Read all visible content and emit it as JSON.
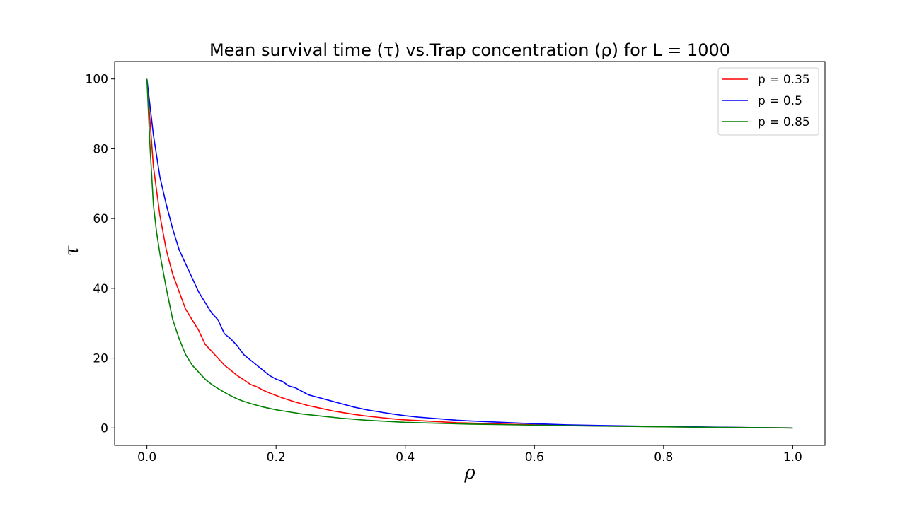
{
  "chart_data": {
    "type": "line",
    "title": "Mean survival time (τ) vs.Trap concentration (ρ) for L = 1000",
    "xlabel": "ρ",
    "ylabel": "τ",
    "xlim": [
      -0.05,
      1.05
    ],
    "ylim": [
      -5,
      105
    ],
    "x_ticks": [
      0.0,
      0.2,
      0.4,
      0.6,
      0.8,
      1.0
    ],
    "x_tick_labels": [
      "0.0",
      "0.2",
      "0.4",
      "0.6",
      "0.8",
      "1.0"
    ],
    "y_ticks": [
      0,
      20,
      40,
      60,
      80,
      100
    ],
    "y_tick_labels": [
      "0",
      "20",
      "40",
      "60",
      "80",
      "100"
    ],
    "grid": false,
    "legend_position": "top-right",
    "series": [
      {
        "name": "p = 0.35",
        "color": "#ff0000",
        "x": [
          0.0,
          0.01,
          0.02,
          0.03,
          0.04,
          0.05,
          0.06,
          0.07,
          0.08,
          0.09,
          0.1,
          0.11,
          0.12,
          0.13,
          0.14,
          0.15,
          0.16,
          0.17,
          0.18,
          0.19,
          0.2,
          0.21,
          0.22,
          0.23,
          0.24,
          0.25,
          0.26,
          0.27,
          0.28,
          0.29,
          0.3,
          0.32,
          0.34,
          0.36,
          0.38,
          0.4,
          0.42,
          0.44,
          0.46,
          0.48,
          0.5,
          0.55,
          0.6,
          0.65,
          0.7,
          0.75,
          0.8,
          0.85,
          0.9,
          0.95,
          1.0
        ],
        "y": [
          100,
          75,
          61,
          51,
          44,
          39,
          34,
          31,
          28,
          24,
          22,
          20,
          18,
          16.5,
          15,
          13.8,
          12.5,
          11.8,
          10.8,
          10,
          9.3,
          8.6,
          8,
          7.4,
          6.9,
          6.4,
          6,
          5.6,
          5.2,
          4.8,
          4.5,
          3.9,
          3.4,
          3.0,
          2.6,
          2.3,
          2.1,
          1.9,
          1.7,
          1.5,
          1.4,
          1.1,
          0.9,
          0.7,
          0.55,
          0.45,
          0.35,
          0.25,
          0.15,
          0.08,
          0.0
        ]
      },
      {
        "name": "p = 0.5",
        "color": "#0000ff",
        "x": [
          0.0,
          0.01,
          0.02,
          0.03,
          0.04,
          0.05,
          0.06,
          0.07,
          0.08,
          0.09,
          0.1,
          0.11,
          0.12,
          0.13,
          0.14,
          0.15,
          0.16,
          0.17,
          0.18,
          0.19,
          0.2,
          0.21,
          0.22,
          0.23,
          0.24,
          0.25,
          0.26,
          0.27,
          0.28,
          0.29,
          0.3,
          0.32,
          0.34,
          0.36,
          0.38,
          0.4,
          0.42,
          0.44,
          0.46,
          0.48,
          0.5,
          0.55,
          0.6,
          0.65,
          0.7,
          0.75,
          0.8,
          0.85,
          0.9,
          0.95,
          1.0
        ],
        "y": [
          100,
          84,
          72,
          64,
          57,
          51,
          47,
          43,
          39,
          36,
          33,
          31,
          27,
          25.5,
          23.5,
          21,
          19.5,
          18,
          16.5,
          15,
          14,
          13.3,
          12,
          11.5,
          10.5,
          9.5,
          9,
          8.5,
          8,
          7.5,
          7,
          6,
          5.2,
          4.6,
          4.0,
          3.5,
          3.1,
          2.8,
          2.5,
          2.2,
          2.0,
          1.6,
          1.2,
          0.9,
          0.7,
          0.55,
          0.4,
          0.3,
          0.18,
          0.08,
          0.0
        ]
      },
      {
        "name": "p = 0.85",
        "color": "#008000",
        "x": [
          0.0,
          0.005,
          0.01,
          0.015,
          0.02,
          0.03,
          0.04,
          0.05,
          0.06,
          0.07,
          0.08,
          0.09,
          0.1,
          0.11,
          0.12,
          0.13,
          0.14,
          0.15,
          0.16,
          0.17,
          0.18,
          0.19,
          0.2,
          0.21,
          0.22,
          0.23,
          0.24,
          0.25,
          0.26,
          0.27,
          0.28,
          0.29,
          0.3,
          0.32,
          0.34,
          0.36,
          0.38,
          0.4,
          0.42,
          0.44,
          0.46,
          0.48,
          0.5,
          0.55,
          0.6,
          0.65,
          0.7,
          0.75,
          0.8,
          0.85,
          0.9,
          0.95,
          1.0
        ],
        "y": [
          100,
          80,
          64,
          56,
          50,
          40,
          31,
          25.5,
          21,
          18,
          16,
          14,
          12.5,
          11.3,
          10.2,
          9.2,
          8.3,
          7.6,
          7,
          6.5,
          6,
          5.6,
          5.2,
          4.9,
          4.6,
          4.3,
          4.0,
          3.8,
          3.6,
          3.4,
          3.2,
          3.0,
          2.8,
          2.5,
          2.2,
          2.0,
          1.8,
          1.6,
          1.5,
          1.4,
          1.3,
          1.2,
          1.1,
          0.95,
          0.8,
          0.65,
          0.52,
          0.42,
          0.32,
          0.22,
          0.14,
          0.07,
          0.0
        ]
      }
    ]
  }
}
